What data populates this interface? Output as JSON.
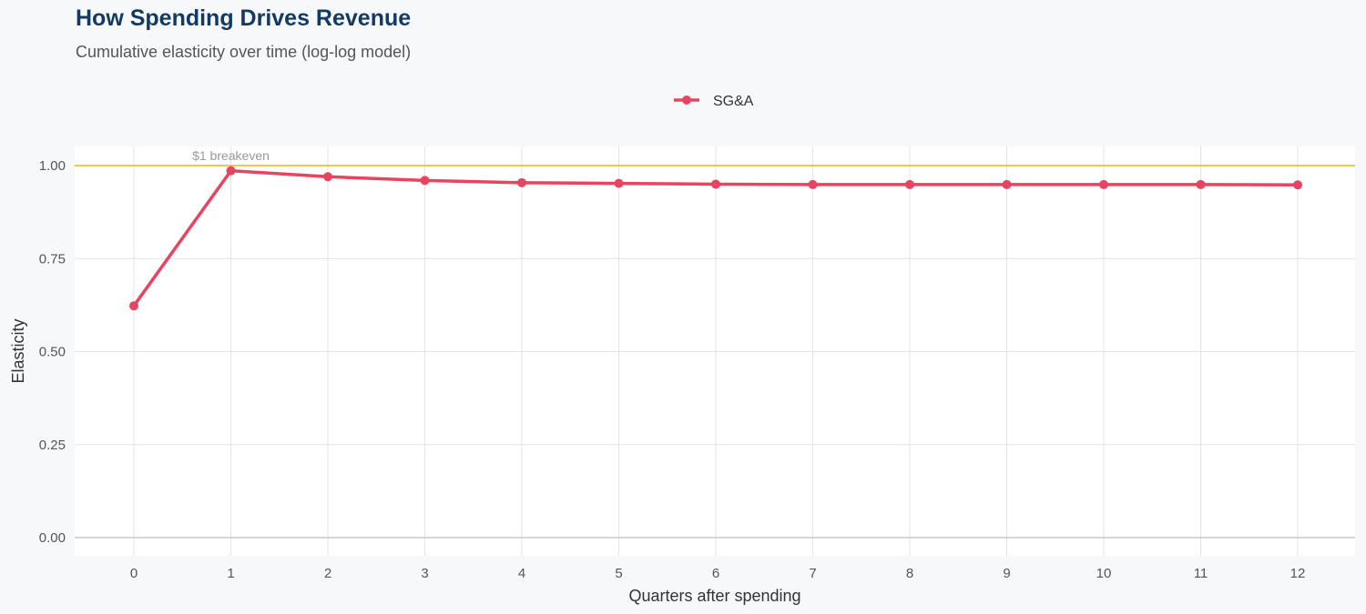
{
  "chart_data": {
    "type": "line",
    "title": "How Spending Drives Revenue",
    "subtitle": "Cumulative elasticity over time (log-log model)",
    "xlabel": "Quarters after spending",
    "ylabel": "Elasticity",
    "x": [
      0,
      1,
      2,
      3,
      4,
      5,
      6,
      7,
      8,
      9,
      10,
      11,
      12
    ],
    "series": [
      {
        "name": "SG&A",
        "color": "#e8435f",
        "values": [
          0.623,
          0.986,
          0.97,
          0.96,
          0.954,
          0.952,
          0.95,
          0.949,
          0.949,
          0.949,
          0.949,
          0.949,
          0.948
        ]
      }
    ],
    "xlim": [
      -0.6,
      12.6
    ],
    "ylim": [
      -0.05,
      1.05
    ],
    "yticks": [
      "0.00",
      "0.25",
      "0.50",
      "0.75",
      "1.00"
    ],
    "xticks": [
      "0",
      "1",
      "2",
      "3",
      "4",
      "5",
      "6",
      "7",
      "8",
      "9",
      "10",
      "11",
      "12"
    ],
    "reference_line": {
      "y": 1.0,
      "label": "$1 breakeven",
      "color": "#f2c45a"
    },
    "legend": "top",
    "grid": true
  }
}
